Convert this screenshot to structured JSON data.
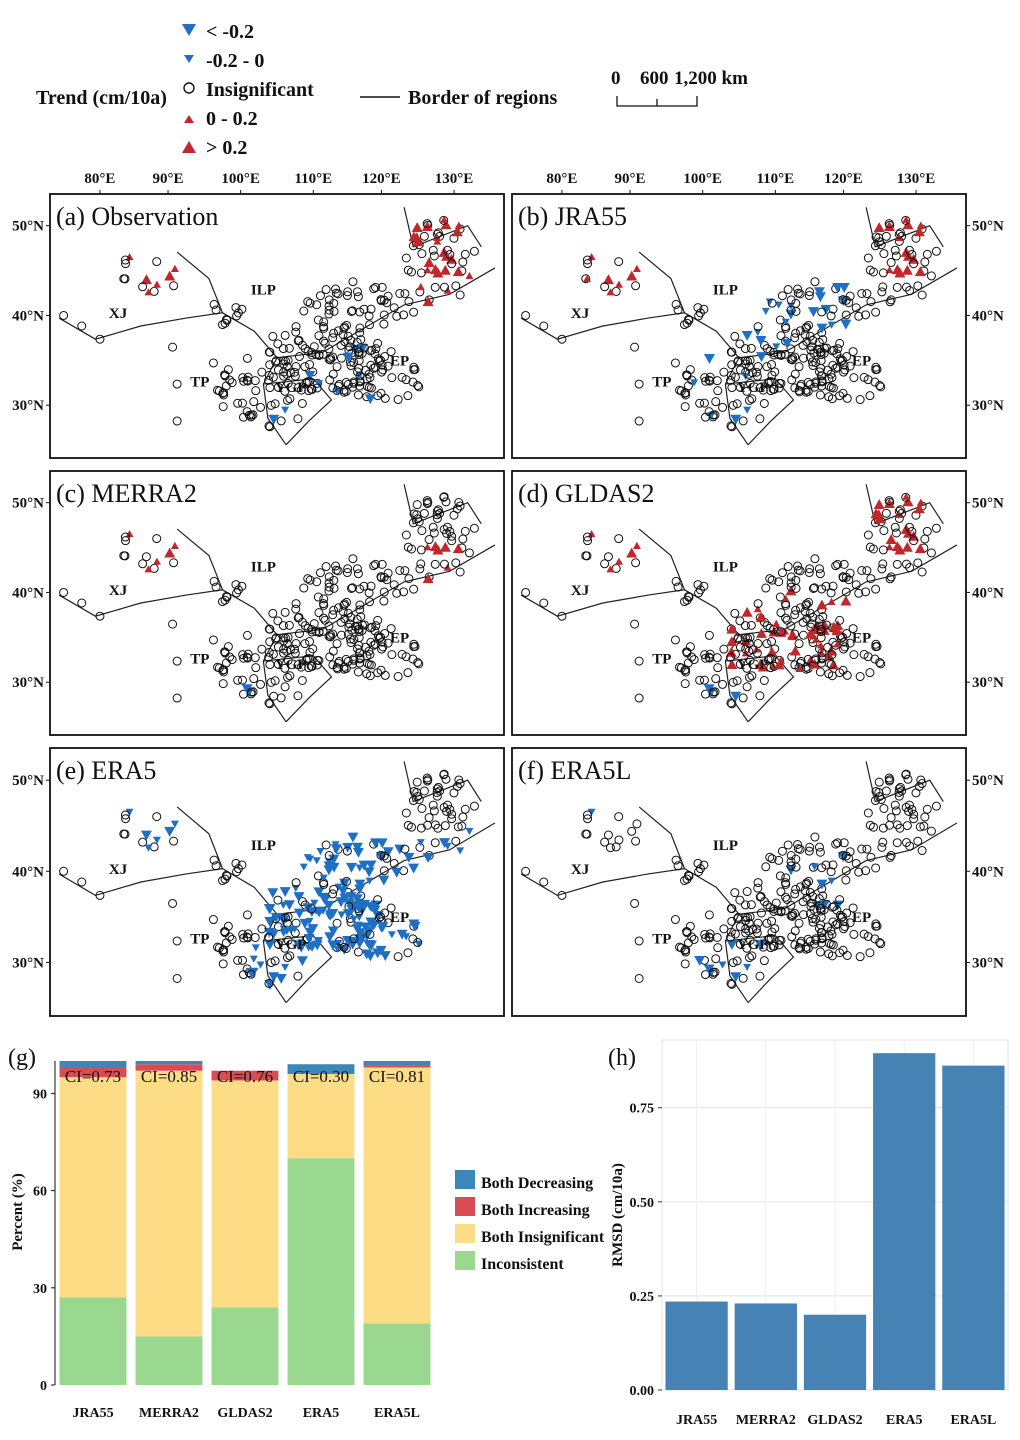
{
  "legend": {
    "title": "Trend (cm/10a)",
    "items": [
      {
        "symbol": "down-large",
        "label": "< -0.2"
      },
      {
        "symbol": "down-small",
        "label": "-0.2 - 0"
      },
      {
        "symbol": "circle",
        "label": "Insignificant"
      },
      {
        "symbol": "up-small",
        "label": "0 - 0.2"
      },
      {
        "symbol": "up-large",
        "label": "> 0.2"
      }
    ],
    "border_label": "Border of regions",
    "scale_labels": [
      "0",
      "600",
      "1,200 km"
    ]
  },
  "colors": {
    "decrease": "#1f6fc5",
    "increase": "#c0282b",
    "marker_edge": "#111111",
    "bar_rmsd": "#4682b4",
    "both_decreasing": "#3a87b8",
    "both_increasing": "#d94b55",
    "both_insignificant": "#fcdd86",
    "inconsistent": "#9ad78f"
  },
  "maps": {
    "lon_ticks": [
      "80°E",
      "90°E",
      "100°E",
      "110°E",
      "120°E",
      "130°E"
    ],
    "lat_ticks": [
      "50°N",
      "40°N",
      "30°N"
    ],
    "region_labels": [
      "XJ",
      "TP",
      "ILP",
      "YGP",
      "EP"
    ],
    "panels": [
      {
        "title": "(a) Observation",
        "pattern": "obs"
      },
      {
        "title": "(b) JRA55",
        "pattern": "jra"
      },
      {
        "title": "(c) MERRA2",
        "pattern": "merra"
      },
      {
        "title": "(d) GLDAS2",
        "pattern": "gldas"
      },
      {
        "title": "(e) ERA5",
        "pattern": "era5"
      },
      {
        "title": "(f) ERA5L",
        "pattern": "era5l"
      }
    ]
  },
  "chart_data": [
    {
      "type": "bar",
      "panel": "(g)",
      "stacked": true,
      "ylabel": "Percent (%)",
      "yticks": [
        0,
        30,
        60,
        90
      ],
      "ylim": [
        0,
        100
      ],
      "categories": [
        "JRA55",
        "MERRA2",
        "GLDAS2",
        "ERA5",
        "ERA5L"
      ],
      "annotations": [
        "CI=0.73",
        "CI=0.85",
        "CI=0.76",
        "CI=0.30",
        "CI=0.81"
      ],
      "legend_position": "right",
      "series": [
        {
          "name": "Inconsistent",
          "values": [
            27,
            15,
            24,
            70,
            19
          ]
        },
        {
          "name": "Both Insignificant",
          "values": [
            68,
            82,
            70,
            26,
            79
          ]
        },
        {
          "name": "Both Increasing",
          "values": [
            3,
            2,
            3,
            0,
            0.5
          ]
        },
        {
          "name": "Both Decreasing",
          "values": [
            2,
            1,
            0,
            3,
            1.5
          ]
        }
      ],
      "legend_order": [
        "Both Decreasing",
        "Both Increasing",
        "Both Insignificant",
        "Inconsistent"
      ]
    },
    {
      "type": "bar",
      "panel": "(h)",
      "ylabel": "RMSD (cm/10a)",
      "yticks": [
        "0.00",
        "0.25",
        "0.50",
        "0.75"
      ],
      "ylim": [
        0,
        0.93
      ],
      "categories": [
        "JRA55",
        "MERRA2",
        "GLDAS2",
        "ERA5",
        "ERA5L"
      ],
      "values": [
        0.235,
        0.23,
        0.2,
        0.895,
        0.862
      ],
      "grid": true
    }
  ]
}
